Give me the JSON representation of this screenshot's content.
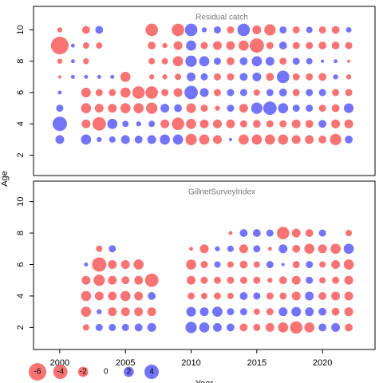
{
  "chart_data": [
    {
      "type": "bubble",
      "title": "Residual catch",
      "y_label": "Age",
      "years": [
        2000,
        2001,
        2002,
        2003,
        2004,
        2005,
        2006,
        2007,
        2008,
        2009,
        2010,
        2011,
        2012,
        2013,
        2014,
        2015,
        2016,
        2017,
        2018,
        2019,
        2020,
        2021,
        2022
      ],
      "ages": [
        10,
        9,
        8,
        7,
        6,
        5,
        4,
        3
      ],
      "residuals": [
        [
          -0.5,
          null,
          -1.2,
          1.2,
          null,
          null,
          null,
          -3,
          null,
          -3,
          3,
          0.5,
          1,
          -1,
          3,
          -1.5,
          -2.5,
          1,
          -1,
          0.8,
          -1,
          -1.2,
          0.6
        ],
        [
          -6,
          0.3,
          -0.8,
          -0.8,
          null,
          null,
          null,
          -1.2,
          -0.5,
          -1.5,
          2,
          -1,
          -1.5,
          -1.5,
          -2,
          -4,
          -1,
          1.2,
          -1,
          -1,
          -1.2,
          -1.2,
          -1
        ],
        [
          -0.5,
          0.3,
          -0.7,
          null,
          null,
          null,
          null,
          -0.8,
          -0.8,
          -2,
          2.5,
          2,
          1,
          -1.2,
          1.2,
          2,
          1.5,
          -1,
          1,
          0.8,
          0.2,
          0.3,
          -0.2
        ],
        [
          -0.2,
          0.3,
          0.3,
          0.3,
          0.3,
          -2,
          null,
          -0.5,
          -0.5,
          -0.8,
          1.5,
          1,
          -1,
          -1,
          1.2,
          1.5,
          -1.2,
          3,
          -1,
          -1,
          -1.2,
          0.5,
          -0.5
        ],
        [
          0.3,
          null,
          -1.8,
          -1,
          -1,
          -2,
          -3,
          -3,
          -1,
          -1.5,
          3.5,
          1.5,
          -1,
          1,
          1,
          -0.8,
          1,
          1.2,
          -1,
          1,
          1,
          -1,
          -1
        ],
        [
          1,
          null,
          -2,
          -1.5,
          -1.5,
          -2,
          -2,
          -2.5,
          1.5,
          1.2,
          -1.8,
          -1,
          -0.5,
          1,
          -1.5,
          2.5,
          3.5,
          2,
          1,
          1,
          -1,
          -1.2,
          1.8
        ],
        [
          4,
          null,
          -1.5,
          -3.5,
          2,
          0.8,
          0.5,
          0.8,
          -1.5,
          -3,
          -2,
          -1.5,
          -1.5,
          -1.5,
          -1,
          -1.2,
          -1,
          -1,
          -1.5,
          -1.2,
          1.2,
          -1.5,
          -1.5
        ],
        [
          1.5,
          null,
          2,
          0.5,
          0.8,
          1.5,
          1.2,
          1.5,
          2,
          2,
          -2.5,
          -2,
          -1.5,
          0.2,
          -2,
          -2,
          -2,
          -2,
          -1.5,
          -1.5,
          -1.2,
          -2.5,
          1.2
        ]
      ],
      "positive_color": "#7474f8",
      "negative_color": "#f87474",
      "xlim": [
        1998,
        2024
      ],
      "ylim": [
        0.7,
        11.5
      ],
      "yticks": [
        2,
        4,
        6,
        8,
        10
      ]
    },
    {
      "type": "bubble",
      "title": "GillnetSurveyIndex",
      "x_label": "Year",
      "years": [
        2002,
        2003,
        2004,
        2005,
        2006,
        2007,
        2008,
        2009,
        2010,
        2011,
        2012,
        2013,
        2014,
        2015,
        2016,
        2017,
        2018,
        2019,
        2020,
        2021,
        2022
      ],
      "ages": [
        8,
        7,
        6,
        5,
        4,
        3,
        2
      ],
      "residuals": [
        [
          null,
          null,
          null,
          null,
          null,
          null,
          null,
          null,
          null,
          null,
          null,
          -0.3,
          1.2,
          1.2,
          1,
          -3,
          -1.5,
          -1.2,
          1,
          null,
          -0.8
        ],
        [
          null,
          -0.8,
          1,
          null,
          null,
          null,
          null,
          null,
          -0.3,
          -1.5,
          0.5,
          0.8,
          -1.5,
          1,
          -0.3,
          1.5,
          -1.2,
          -2,
          -1.5,
          -2,
          2
        ],
        [
          0.3,
          -4,
          -1.5,
          -1.5,
          -2,
          null,
          null,
          null,
          -2,
          -1,
          0.8,
          -0.8,
          -1.2,
          -0.8,
          1,
          0.2,
          -1,
          1,
          -0.8,
          -1.5,
          -2
        ],
        [
          -1.5,
          -2.5,
          -1.5,
          -1.2,
          -1.5,
          -3.5,
          null,
          null,
          -1.5,
          -1,
          -1,
          -1,
          -1,
          -1,
          -0.5,
          -1.2,
          -1.5,
          1,
          -0.8,
          -1,
          -1.5
        ],
        [
          -2,
          -1.5,
          -1.5,
          -2,
          -1.5,
          1.2,
          null,
          null,
          -1,
          -0.8,
          -1,
          -0.8,
          1.2,
          1,
          -1,
          -1,
          -1.5,
          1.5,
          -1.2,
          -1.5,
          -1.5
        ],
        [
          -2,
          0.5,
          -1.5,
          -1.5,
          -1.5,
          -1.5,
          null,
          null,
          1.8,
          1.5,
          2,
          1,
          1,
          -0.8,
          -1,
          1.5,
          1.8,
          1.5,
          1.2,
          -1.2,
          -1.5
        ],
        [
          -0.8,
          1,
          1,
          1,
          1.2,
          1.5,
          null,
          null,
          2.5,
          2,
          1.5,
          1.2,
          -1.2,
          -1,
          -1.5,
          -2,
          -3,
          -2,
          1.2,
          1.5,
          -1.2
        ]
      ],
      "positive_color": "#7474f8",
      "negative_color": "#f87474",
      "xlim": [
        1998,
        2024
      ],
      "ylim": [
        0.6,
        11.3
      ],
      "yticks": [
        2,
        4,
        6,
        8,
        10
      ],
      "xticks": [
        2000,
        2005,
        2010,
        2015,
        2020
      ],
      "size_legend": [
        -6,
        -4,
        -2,
        0,
        2,
        4
      ]
    }
  ]
}
